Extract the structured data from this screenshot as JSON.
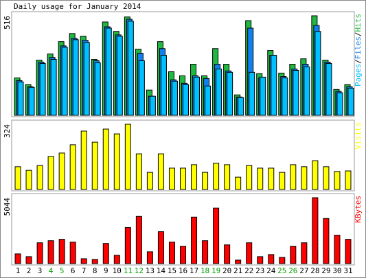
{
  "chart_data": {
    "type": "bar",
    "title": "Daily usage for January 2014",
    "categories": [
      "1",
      "2",
      "3",
      "4",
      "5",
      "6",
      "7",
      "8",
      "9",
      "10",
      "11",
      "12",
      "13",
      "14",
      "15",
      "16",
      "17",
      "18",
      "19",
      "20",
      "21",
      "22",
      "23",
      "24",
      "25",
      "26",
      "27",
      "28",
      "29",
      "30",
      "31"
    ],
    "highlight": [
      3,
      4,
      10,
      11,
      17,
      18,
      24,
      25
    ],
    "highlight_color": "#00a000",
    "separator": "/",
    "panels": [
      {
        "ylim": [
          0,
          516
        ],
        "yticks": [
          516
        ],
        "series": [
          {
            "name": "Hits",
            "color": "#20b840",
            "values": [
              194,
              159,
              286,
              318,
              382,
              424,
              410,
              290,
              484,
              435,
              510,
              343,
              131,
              382,
              226,
              205,
              265,
              205,
              346,
              265,
              106,
              491,
              216,
              336,
              219,
              265,
              293,
              516,
              286,
              134,
              159
            ]
          },
          {
            "name": "Files",
            "color": "#1080f0",
            "values": [
              180,
              148,
              276,
              300,
              360,
              399,
              389,
              283,
              459,
              417,
              498,
              322,
              99,
              346,
              184,
              166,
              205,
              191,
              265,
              230,
              95,
              452,
              194,
              311,
              201,
              240,
              265,
              466,
              276,
              124,
              148
            ]
          },
          {
            "name": "Pages",
            "color": "#00c0ff",
            "values": [
              173,
              145,
              269,
              290,
              353,
              392,
              378,
              272,
              452,
              410,
              488,
              283,
              99,
              311,
              177,
              159,
              198,
              152,
              240,
              223,
              92,
              223,
              198,
              311,
              194,
              233,
              251,
              435,
              269,
              117,
              141
            ]
          }
        ]
      },
      {
        "ylim": [
          0,
          324
        ],
        "yticks": [
          324
        ],
        "series": [
          {
            "name": "Visits",
            "color": "#ffff00",
            "values": [
              113,
              95,
              119,
              164,
              181,
              222,
              290,
              235,
              300,
              276,
              324,
              177,
              85,
              177,
              106,
              106,
              123,
              85,
              130,
              123,
              61,
              119,
              106,
              106,
              85,
              123,
              113,
              143,
              113,
              89,
              92
            ]
          }
        ]
      },
      {
        "ylim": [
          0,
          5044
        ],
        "yticks": [
          5044
        ],
        "series": [
          {
            "name": "KBytes",
            "color": "#ff0000",
            "values": [
              743,
              531,
              1593,
              1752,
              1858,
              1646,
              372,
              319,
              1540,
              637,
              2761,
              3611,
              903,
              2443,
              1646,
              1328,
              3558,
              1752,
              4248,
              1434,
              266,
              1593,
              531,
              690,
              478,
              1328,
              1593,
              5044,
              3452,
              2177,
              1858
            ]
          }
        ]
      }
    ]
  }
}
